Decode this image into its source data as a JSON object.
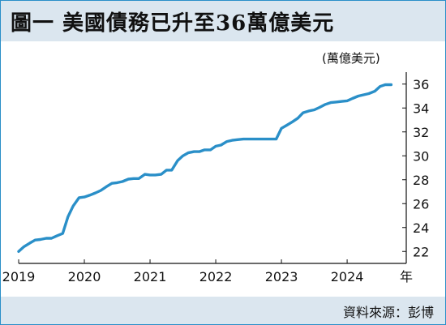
{
  "title": "圖一  美國債務已升至36萬億美元",
  "source": "資料來源：彭博",
  "chart_data": {
    "type": "line",
    "unit_label": "(萬億美元)",
    "x_unit_label": "年",
    "xlim": [
      2019.0,
      2024.9
    ],
    "ylim": [
      21.0,
      37.0
    ],
    "x_ticks": [
      2019,
      2020,
      2021,
      2022,
      2023,
      2024
    ],
    "x_tick_labels": [
      "2019",
      "2020",
      "2021",
      "2022",
      "2023",
      "2024"
    ],
    "y_ticks": [
      22,
      24,
      26,
      28,
      30,
      32,
      34,
      36
    ],
    "y_tick_labels": [
      "22",
      "24",
      "26",
      "28",
      "30",
      "32",
      "34",
      "36"
    ],
    "grid": false,
    "line_color": "#2a8fc8",
    "x": [
      2019.0,
      2019.08,
      2019.17,
      2019.25,
      2019.33,
      2019.42,
      2019.5,
      2019.58,
      2019.67,
      2019.75,
      2019.83,
      2019.92,
      2020.0,
      2020.08,
      2020.17,
      2020.25,
      2020.33,
      2020.42,
      2020.5,
      2020.58,
      2020.67,
      2020.75,
      2020.83,
      2020.92,
      2021.0,
      2021.08,
      2021.17,
      2021.25,
      2021.33,
      2021.42,
      2021.5,
      2021.58,
      2021.67,
      2021.75,
      2021.83,
      2021.92,
      2022.0,
      2022.08,
      2022.17,
      2022.25,
      2022.33,
      2022.42,
      2022.5,
      2022.58,
      2022.67,
      2022.75,
      2022.83,
      2022.92,
      2023.0,
      2023.08,
      2023.17,
      2023.25,
      2023.33,
      2023.42,
      2023.5,
      2023.58,
      2023.67,
      2023.75,
      2023.83,
      2023.92,
      2024.0,
      2024.08,
      2024.17,
      2024.25,
      2024.33,
      2024.42,
      2024.5,
      2024.58,
      2024.67
    ],
    "y": [
      22.0,
      22.4,
      22.7,
      22.95,
      23.0,
      23.1,
      23.1,
      23.3,
      23.5,
      24.9,
      25.8,
      26.5,
      26.55,
      26.7,
      26.9,
      27.1,
      27.4,
      27.7,
      27.75,
      27.85,
      28.05,
      28.1,
      28.1,
      28.45,
      28.4,
      28.4,
      28.45,
      28.8,
      28.8,
      29.6,
      30.0,
      30.25,
      30.35,
      30.35,
      30.5,
      30.5,
      30.8,
      30.9,
      31.2,
      31.3,
      31.35,
      31.4,
      31.4,
      31.4,
      31.4,
      31.4,
      31.4,
      31.4,
      32.3,
      32.55,
      32.85,
      33.15,
      33.6,
      33.75,
      33.85,
      34.05,
      34.3,
      34.45,
      34.5,
      34.55,
      34.6,
      34.8,
      35.0,
      35.1,
      35.2,
      35.4,
      35.8,
      35.95,
      35.95
    ]
  }
}
